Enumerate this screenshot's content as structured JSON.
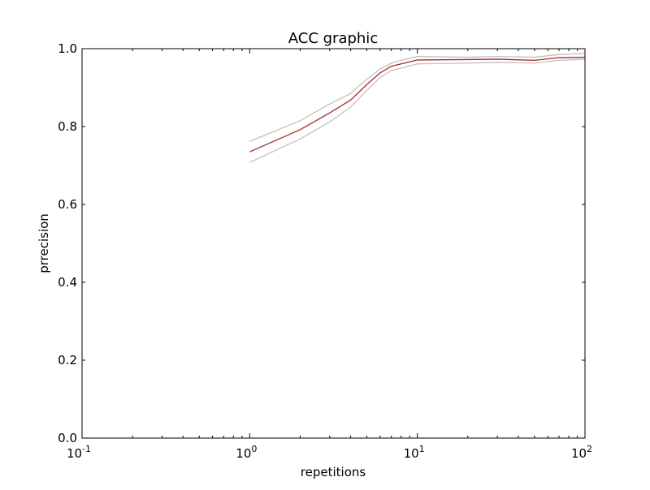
{
  "chart_data": {
    "type": "line",
    "title": "ACC graphic",
    "xlabel": "repetitions",
    "ylabel": "prrecision",
    "x_scale": "log",
    "xlim": [
      0.1,
      100
    ],
    "ylim": [
      0.0,
      1.0
    ],
    "grid": false,
    "x_ticks": [
      {
        "value": 0.1,
        "base": "10",
        "exp": "-1"
      },
      {
        "value": 1,
        "base": "10",
        "exp": "0"
      },
      {
        "value": 10,
        "base": "10",
        "exp": "1"
      },
      {
        "value": 100,
        "base": "10",
        "exp": "2"
      }
    ],
    "y_ticks": [
      {
        "value": 0.0,
        "label": "0.0"
      },
      {
        "value": 0.2,
        "label": "0.2"
      },
      {
        "value": 0.4,
        "label": "0.4"
      },
      {
        "value": 0.6,
        "label": "0.6"
      },
      {
        "value": 0.8,
        "label": "0.8"
      },
      {
        "value": 1.0,
        "label": "1.0"
      }
    ],
    "x": [
      1,
      2,
      3,
      4,
      5,
      6,
      7,
      8,
      10,
      20,
      30,
      50,
      70,
      100
    ],
    "series": [
      {
        "color": "#a52a2a",
        "values": [
          0.735,
          0.792,
          0.835,
          0.868,
          0.908,
          0.938,
          0.955,
          0.961,
          0.971,
          0.972,
          0.973,
          0.97,
          0.977,
          0.978
        ]
      },
      {
        "color": "#c0c0c0",
        "values": [
          0.762,
          0.815,
          0.858,
          0.885,
          0.922,
          0.948,
          0.963,
          0.97,
          0.98,
          0.978,
          0.98,
          0.978,
          0.985,
          0.988
        ]
      },
      {
        "color": "#c0c0c0",
        "values": [
          0.708,
          0.768,
          0.812,
          0.85,
          0.893,
          0.926,
          0.944,
          0.95,
          0.961,
          0.963,
          0.965,
          0.963,
          0.97,
          0.973
        ]
      }
    ]
  }
}
